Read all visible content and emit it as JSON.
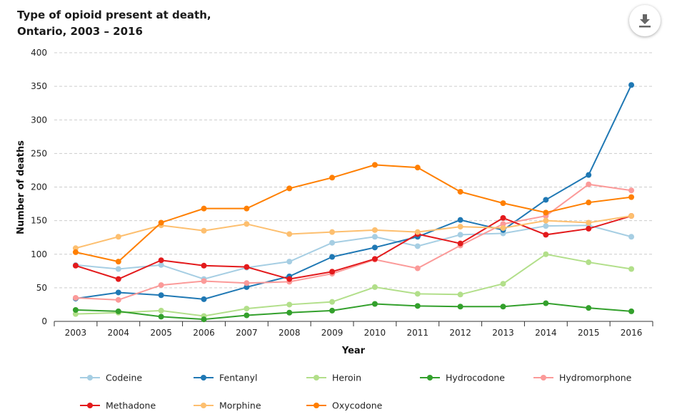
{
  "title_lines": [
    "Type of opioid present at death,",
    "Ontario, 2003 – 2016"
  ],
  "download_icon": "download-icon",
  "chart_data": {
    "type": "line",
    "title": "Type of opioid present at death, Ontario, 2003 – 2016",
    "xlabel": "Year",
    "ylabel": "Number of deaths",
    "ylim": [
      0,
      400
    ],
    "yticks": [
      0,
      50,
      100,
      150,
      200,
      250,
      300,
      350,
      400
    ],
    "grid": "horizontal dashed",
    "legend_position": "bottom",
    "x": [
      "2003",
      "2004",
      "2005",
      "2006",
      "2007",
      "2008",
      "2009",
      "2010",
      "2011",
      "2012",
      "2013",
      "2014",
      "2015",
      "2016"
    ],
    "series": [
      {
        "name": "Codeine",
        "color": "#a6cee3",
        "values": [
          84,
          78,
          84,
          63,
          80,
          89,
          117,
          126,
          112,
          129,
          131,
          142,
          143,
          126
        ]
      },
      {
        "name": "Fentanyl",
        "color": "#1f78b4",
        "values": [
          34,
          43,
          39,
          33,
          51,
          67,
          96,
          110,
          126,
          151,
          136,
          181,
          218,
          352
        ]
      },
      {
        "name": "Heroin",
        "color": "#b2df8a",
        "values": [
          11,
          13,
          16,
          8,
          19,
          25,
          29,
          51,
          41,
          40,
          56,
          100,
          88,
          78
        ]
      },
      {
        "name": "Hydrocodone",
        "color": "#33a02c",
        "values": [
          17,
          15,
          7,
          3,
          9,
          13,
          16,
          26,
          23,
          22,
          22,
          27,
          20,
          15
        ]
      },
      {
        "name": "Hydromorphone",
        "color": "#fb9a99",
        "values": [
          35,
          32,
          54,
          60,
          57,
          59,
          71,
          92,
          79,
          113,
          145,
          157,
          204,
          195
        ]
      },
      {
        "name": "Methadone",
        "color": "#e31a1c",
        "values": [
          83,
          63,
          91,
          83,
          81,
          63,
          74,
          93,
          130,
          116,
          154,
          129,
          138,
          157
        ]
      },
      {
        "name": "Morphine",
        "color": "#fdbf6f",
        "values": [
          109,
          126,
          143,
          135,
          145,
          130,
          133,
          136,
          133,
          141,
          139,
          150,
          147,
          157
        ]
      },
      {
        "name": "Oxycodone",
        "color": "#ff7f00",
        "values": [
          103,
          89,
          147,
          168,
          168,
          198,
          214,
          233,
          229,
          193,
          176,
          162,
          177,
          185
        ]
      }
    ]
  }
}
